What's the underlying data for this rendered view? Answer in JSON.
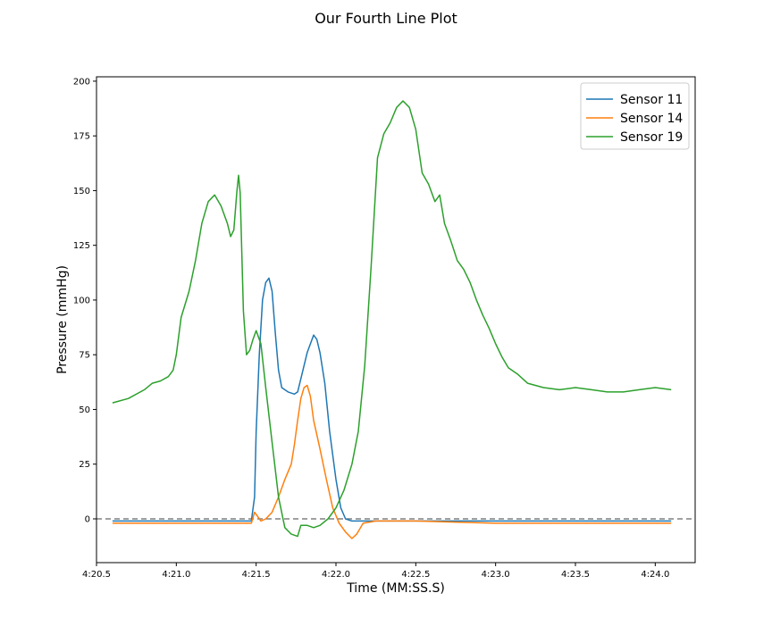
{
  "chart_data": {
    "type": "line",
    "title": "Our Fourth Line Plot",
    "xlabel": "Time (MM:SS.S)",
    "ylabel": "Pressure (mmHg)",
    "xlim": [
      260.5,
      264.25
    ],
    "ylim": [
      -20,
      202
    ],
    "x_ticks": [
      {
        "value": 260.5,
        "label": "4:20.5"
      },
      {
        "value": 261.0,
        "label": "4:21.0"
      },
      {
        "value": 261.5,
        "label": "4:21.5"
      },
      {
        "value": 262.0,
        "label": "4:22.0"
      },
      {
        "value": 262.5,
        "label": "4:22.5"
      },
      {
        "value": 263.0,
        "label": "4:23.0"
      },
      {
        "value": 263.5,
        "label": "4:23.5"
      },
      {
        "value": 264.0,
        "label": "4:24.0"
      }
    ],
    "y_ticks": [
      {
        "value": 0,
        "label": "0"
      },
      {
        "value": 25,
        "label": "25"
      },
      {
        "value": 50,
        "label": "50"
      },
      {
        "value": 75,
        "label": "75"
      },
      {
        "value": 100,
        "label": "100"
      },
      {
        "value": 125,
        "label": "125"
      },
      {
        "value": 150,
        "label": "150"
      },
      {
        "value": 175,
        "label": "175"
      },
      {
        "value": 200,
        "label": "200"
      }
    ],
    "grid": false,
    "legend_position": "top-right",
    "reference_line": {
      "y": 0,
      "style": "dashed",
      "color": "#808080"
    },
    "series": [
      {
        "name": "Sensor 11",
        "color": "#1f77b4",
        "points": [
          [
            260.6,
            -1
          ],
          [
            260.8,
            -1
          ],
          [
            261.0,
            -1
          ],
          [
            261.2,
            -1
          ],
          [
            261.4,
            -1
          ],
          [
            261.47,
            -1
          ],
          [
            261.49,
            10
          ],
          [
            261.5,
            40
          ],
          [
            261.52,
            75
          ],
          [
            261.54,
            100
          ],
          [
            261.56,
            108
          ],
          [
            261.58,
            110
          ],
          [
            261.6,
            104
          ],
          [
            261.62,
            85
          ],
          [
            261.64,
            68
          ],
          [
            261.66,
            60
          ],
          [
            261.7,
            58
          ],
          [
            261.74,
            57
          ],
          [
            261.76,
            58
          ],
          [
            261.78,
            64
          ],
          [
            261.82,
            76
          ],
          [
            261.86,
            84
          ],
          [
            261.88,
            82
          ],
          [
            261.9,
            76
          ],
          [
            261.93,
            62
          ],
          [
            261.96,
            40
          ],
          [
            262.0,
            18
          ],
          [
            262.03,
            5
          ],
          [
            262.06,
            0
          ],
          [
            262.1,
            -1
          ],
          [
            262.2,
            -1
          ],
          [
            262.5,
            -1
          ],
          [
            263.0,
            -1
          ],
          [
            263.5,
            -1
          ],
          [
            264.1,
            -1
          ]
        ]
      },
      {
        "name": "Sensor 14",
        "color": "#ff7f0e",
        "points": [
          [
            260.6,
            -2
          ],
          [
            260.8,
            -2
          ],
          [
            261.0,
            -2
          ],
          [
            261.2,
            -2
          ],
          [
            261.4,
            -2
          ],
          [
            261.47,
            -2
          ],
          [
            261.49,
            3
          ],
          [
            261.51,
            1
          ],
          [
            261.53,
            -1
          ],
          [
            261.56,
            0
          ],
          [
            261.6,
            3
          ],
          [
            261.64,
            10
          ],
          [
            261.68,
            18
          ],
          [
            261.72,
            25
          ],
          [
            261.74,
            34
          ],
          [
            261.76,
            45
          ],
          [
            261.78,
            55
          ],
          [
            261.8,
            60
          ],
          [
            261.82,
            61
          ],
          [
            261.84,
            56
          ],
          [
            261.86,
            45
          ],
          [
            261.9,
            32
          ],
          [
            261.94,
            18
          ],
          [
            261.98,
            5
          ],
          [
            262.02,
            -2
          ],
          [
            262.06,
            -6
          ],
          [
            262.1,
            -9
          ],
          [
            262.13,
            -7
          ],
          [
            262.17,
            -2
          ],
          [
            262.25,
            -1
          ],
          [
            262.5,
            -1
          ],
          [
            263.0,
            -2
          ],
          [
            263.5,
            -2
          ],
          [
            264.1,
            -2
          ]
        ]
      },
      {
        "name": "Sensor 19",
        "color": "#2ca02c",
        "points": [
          [
            260.6,
            53
          ],
          [
            260.7,
            55
          ],
          [
            260.8,
            59
          ],
          [
            260.85,
            62
          ],
          [
            260.9,
            63
          ],
          [
            260.95,
            65
          ],
          [
            260.98,
            68
          ],
          [
            261.0,
            75
          ],
          [
            261.03,
            92
          ],
          [
            261.08,
            104
          ],
          [
            261.12,
            118
          ],
          [
            261.16,
            135
          ],
          [
            261.2,
            145
          ],
          [
            261.24,
            148
          ],
          [
            261.28,
            143
          ],
          [
            261.32,
            135
          ],
          [
            261.34,
            129
          ],
          [
            261.36,
            132
          ],
          [
            261.38,
            150
          ],
          [
            261.39,
            157
          ],
          [
            261.4,
            149
          ],
          [
            261.42,
            95
          ],
          [
            261.44,
            75
          ],
          [
            261.46,
            77
          ],
          [
            261.48,
            82
          ],
          [
            261.5,
            86
          ],
          [
            261.53,
            80
          ],
          [
            261.56,
            60
          ],
          [
            261.6,
            35
          ],
          [
            261.64,
            10
          ],
          [
            261.68,
            -4
          ],
          [
            261.72,
            -7
          ],
          [
            261.76,
            -8
          ],
          [
            261.78,
            -3
          ],
          [
            261.82,
            -3
          ],
          [
            261.86,
            -4
          ],
          [
            261.9,
            -3
          ],
          [
            261.95,
            0
          ],
          [
            262.0,
            5
          ],
          [
            262.05,
            13
          ],
          [
            262.1,
            25
          ],
          [
            262.14,
            40
          ],
          [
            262.18,
            70
          ],
          [
            262.22,
            115
          ],
          [
            262.26,
            165
          ],
          [
            262.3,
            176
          ],
          [
            262.34,
            181
          ],
          [
            262.38,
            188
          ],
          [
            262.42,
            191
          ],
          [
            262.46,
            188
          ],
          [
            262.5,
            178
          ],
          [
            262.54,
            158
          ],
          [
            262.58,
            153
          ],
          [
            262.62,
            145
          ],
          [
            262.65,
            148
          ],
          [
            262.68,
            135
          ],
          [
            262.72,
            127
          ],
          [
            262.76,
            118
          ],
          [
            262.8,
            114
          ],
          [
            262.84,
            108
          ],
          [
            262.88,
            100
          ],
          [
            262.92,
            93
          ],
          [
            262.96,
            87
          ],
          [
            263.0,
            80
          ],
          [
            263.04,
            74
          ],
          [
            263.08,
            69
          ],
          [
            263.14,
            66
          ],
          [
            263.2,
            62
          ],
          [
            263.3,
            60
          ],
          [
            263.4,
            59
          ],
          [
            263.5,
            60
          ],
          [
            263.6,
            59
          ],
          [
            263.7,
            58
          ],
          [
            263.8,
            58
          ],
          [
            263.9,
            59
          ],
          [
            264.0,
            60
          ],
          [
            264.1,
            59
          ]
        ]
      }
    ]
  }
}
